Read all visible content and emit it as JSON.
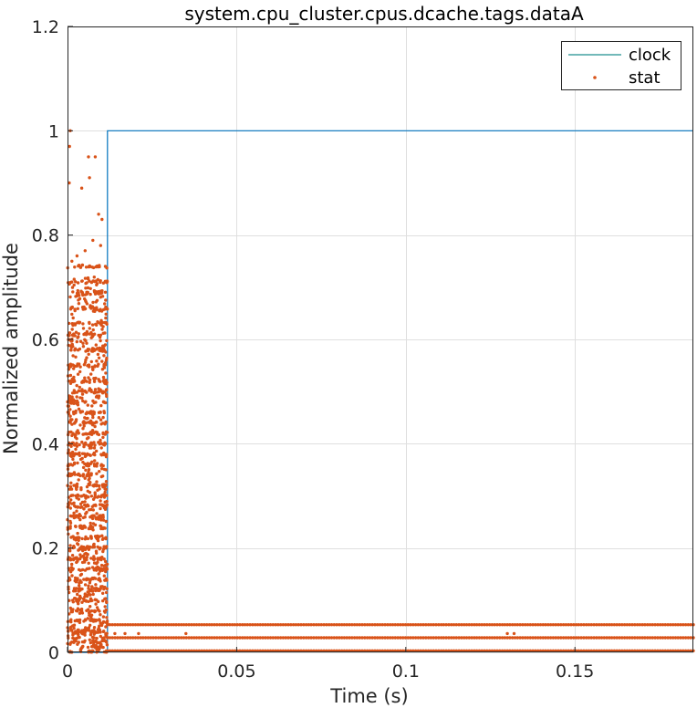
{
  "chart_data": {
    "type": "line",
    "title": "system.cpu_cluster.cpus.dcache.tags.dataA",
    "xlabel": "Time (s)",
    "ylabel": "Normalized amplitude",
    "xlim": [
      0,
      0.185
    ],
    "ylim": [
      0,
      1.2
    ],
    "x_ticks": [
      0,
      0.05,
      0.1,
      0.15
    ],
    "x_tick_labels": [
      "0",
      "0.05",
      "0.1",
      "0.15"
    ],
    "y_ticks": [
      0,
      0.2,
      0.4,
      0.6,
      0.8,
      1.0,
      1.2
    ],
    "y_tick_labels": [
      "0",
      "0.2",
      "0.4",
      "0.6",
      "0.8",
      "1",
      "1.2"
    ],
    "grid": true,
    "legend_position": "top-right",
    "series": [
      {
        "name": "clock",
        "kind": "step-line",
        "color": "#0072BD",
        "legend_color": "#1f8f8f",
        "x": [
          0,
          0.0118,
          0.0118,
          0.185
        ],
        "y": [
          0,
          0,
          1,
          1
        ]
      },
      {
        "name": "stat",
        "kind": "scatter",
        "color": "#D95319",
        "bands": [
          {
            "x_range": [
              0,
              0.0118
            ],
            "y_levels": [
              0.02,
              0.04,
              0.06,
              0.08,
              0.1,
              0.12,
              0.14,
              0.16,
              0.18,
              0.2,
              0.22,
              0.24,
              0.26,
              0.28,
              0.3,
              0.32,
              0.34,
              0.36,
              0.38,
              0.4,
              0.42,
              0.44,
              0.46,
              0.48,
              0.5,
              0.52,
              0.55,
              0.58,
              0.61,
              0.63,
              0.66,
              0.69,
              0.71,
              0.74
            ]
          },
          {
            "x_range": [
              0.0118,
              0.185
            ],
            "y_levels": [
              0.003,
              0.028,
              0.053
            ]
          }
        ],
        "sparse_points": [
          {
            "x": 0.0008,
            "y": 1.0
          },
          {
            "x": 0.0006,
            "y": 0.97
          },
          {
            "x": 0.0005,
            "y": 0.9
          },
          {
            "x": 0.0042,
            "y": 0.89
          },
          {
            "x": 0.0062,
            "y": 0.95
          },
          {
            "x": 0.0082,
            "y": 0.95
          },
          {
            "x": 0.0065,
            "y": 0.91
          },
          {
            "x": 0.0092,
            "y": 0.84
          },
          {
            "x": 0.0102,
            "y": 0.83
          },
          {
            "x": 0.0075,
            "y": 0.79
          },
          {
            "x": 0.0052,
            "y": 0.77
          },
          {
            "x": 0.0098,
            "y": 0.78
          },
          {
            "x": 0.0028,
            "y": 0.76
          },
          {
            "x": 0.0112,
            "y": 0.74
          },
          {
            "x": 0.0013,
            "y": 0.75
          },
          {
            "x": 0.014,
            "y": 0.036
          },
          {
            "x": 0.017,
            "y": 0.036
          },
          {
            "x": 0.021,
            "y": 0.036
          },
          {
            "x": 0.035,
            "y": 0.036
          },
          {
            "x": 0.13,
            "y": 0.036
          },
          {
            "x": 0.132,
            "y": 0.036
          }
        ]
      }
    ]
  }
}
